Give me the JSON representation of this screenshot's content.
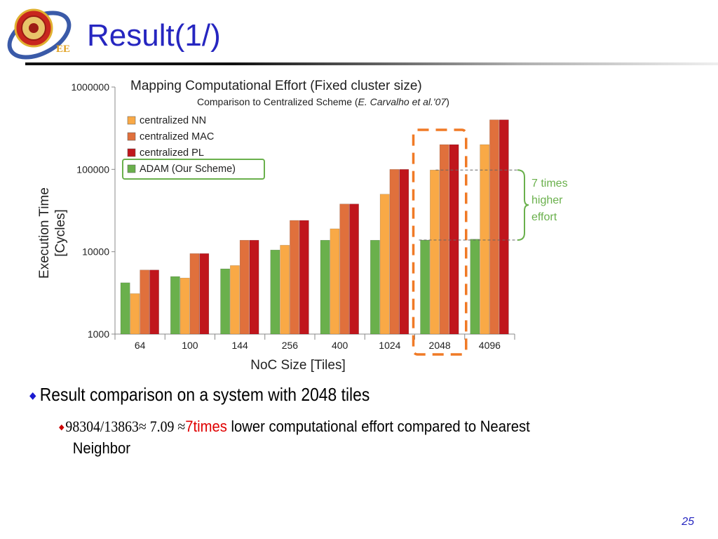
{
  "slide": {
    "title": "Result(1/)",
    "page_number": "25",
    "logo_text": "EE"
  },
  "bullets": {
    "main": "Result comparison on a system with 2048 tiles",
    "sub_formula": "98304/13863≈ 7.09 ≈",
    "sub_highlight": "7times",
    "sub_rest": " lower computational effort compared to Nearest",
    "sub_cont": "Neighbor"
  },
  "chart_data": {
    "type": "bar",
    "title": "Mapping Computational Effort (Fixed cluster size)",
    "subtitle_prefix": "Comparison to Centralized Scheme (",
    "subtitle_italic": "E. Carvalho et al.'07",
    "subtitle_suffix": ")",
    "xlabel": "NoC Size [Tiles]",
    "ylabel_line1": "Execution Time",
    "ylabel_line2": "[Cycles]",
    "yscale": "log",
    "ylim": [
      1000,
      1000000
    ],
    "yticks": [
      {
        "value": 1000,
        "label": "1000"
      },
      {
        "value": 10000,
        "label": "10000"
      },
      {
        "value": 100000,
        "label": "100000"
      },
      {
        "value": 1000000,
        "label": "1000000"
      }
    ],
    "categories": [
      "64",
      "100",
      "144",
      "256",
      "400",
      "1024",
      "2048",
      "4096"
    ],
    "series": [
      {
        "name": "ADAM (Our Scheme)",
        "color": "#6ab04c",
        "values": [
          4200,
          5000,
          6200,
          10500,
          13800,
          13800,
          13863,
          14200
        ]
      },
      {
        "name": "centralized NN",
        "color": "#f9a946",
        "values": [
          3100,
          4800,
          6800,
          12000,
          19000,
          50000,
          98304,
          200000
        ]
      },
      {
        "name": "centralized MAC",
        "color": "#e0703c",
        "values": [
          6000,
          9500,
          13800,
          24000,
          38000,
          100000,
          200000,
          400000
        ]
      },
      {
        "name": "centralized PL",
        "color": "#c0161c",
        "values": [
          6000,
          9500,
          13800,
          24000,
          38000,
          100000,
          200000,
          400000
        ]
      }
    ],
    "legend": {
      "placement": "top-left",
      "order": [
        "centralized NN",
        "centralized MAC",
        "centralized PL",
        "ADAM (Our Scheme)"
      ]
    },
    "highlight": {
      "category": "2048",
      "color": "#f07a26"
    },
    "annotation": {
      "lines": [
        "7 times",
        "higher",
        "effort"
      ],
      "color": "#6ab04c",
      "from_value": 13863,
      "to_value": 98304
    }
  }
}
